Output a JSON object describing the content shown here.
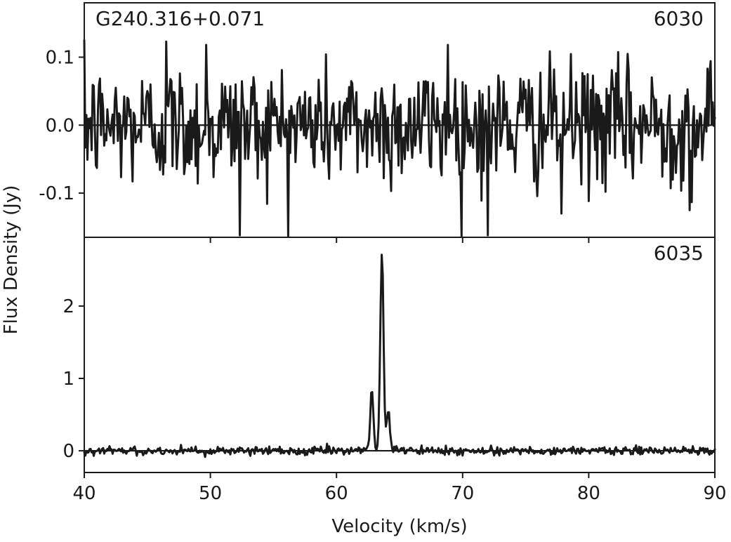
{
  "chart_data": [
    {
      "type": "line",
      "panel": "top",
      "source_label": "G240.316+0.071",
      "transition_label": "6030",
      "xlabel": "Velocity (km/s)",
      "ylabel": "Flux Density (Jy)",
      "xlim": [
        40,
        90
      ],
      "ylim": [
        -0.165,
        0.18
      ],
      "x_ticks": [
        40,
        50,
        60,
        70,
        80,
        90
      ],
      "y_ticks": [
        0.1,
        0.0,
        -0.1
      ],
      "y_tick_labels": [
        "0.1",
        "0.0",
        "-0.1"
      ],
      "noise_rms": 0.045,
      "baseline": 0.0,
      "notable_points": [
        {
          "x": 46.5,
          "y": 0.123
        },
        {
          "x": 49.7,
          "y": 0.118
        },
        {
          "x": 52.3,
          "y": -0.162
        },
        {
          "x": 68.8,
          "y": 0.118
        },
        {
          "x": 72.0,
          "y": -0.162
        },
        {
          "x": 77.8,
          "y": -0.13
        },
        {
          "x": 88.0,
          "y": -0.125
        }
      ]
    },
    {
      "type": "line",
      "panel": "bottom",
      "transition_label": "6035",
      "xlabel": "Velocity (km/s)",
      "ylabel": "Flux Density (Jy)",
      "xlim": [
        40,
        90
      ],
      "ylim": [
        -0.3,
        2.95
      ],
      "x_ticks": [
        40,
        50,
        60,
        70,
        80,
        90
      ],
      "x_tick_labels": [
        "40",
        "50",
        "60",
        "70",
        "80",
        "90"
      ],
      "y_ticks": [
        0,
        1,
        2
      ],
      "y_tick_labels": [
        "0",
        "1",
        "2"
      ],
      "noise_rms": 0.03,
      "baseline": 0.0,
      "peaks": [
        {
          "velocity": 62.8,
          "flux": 0.86,
          "width": 0.12
        },
        {
          "velocity": 63.6,
          "flux": 2.74,
          "width": 0.13
        },
        {
          "velocity": 64.1,
          "flux": 0.6,
          "width": 0.12
        }
      ]
    }
  ]
}
